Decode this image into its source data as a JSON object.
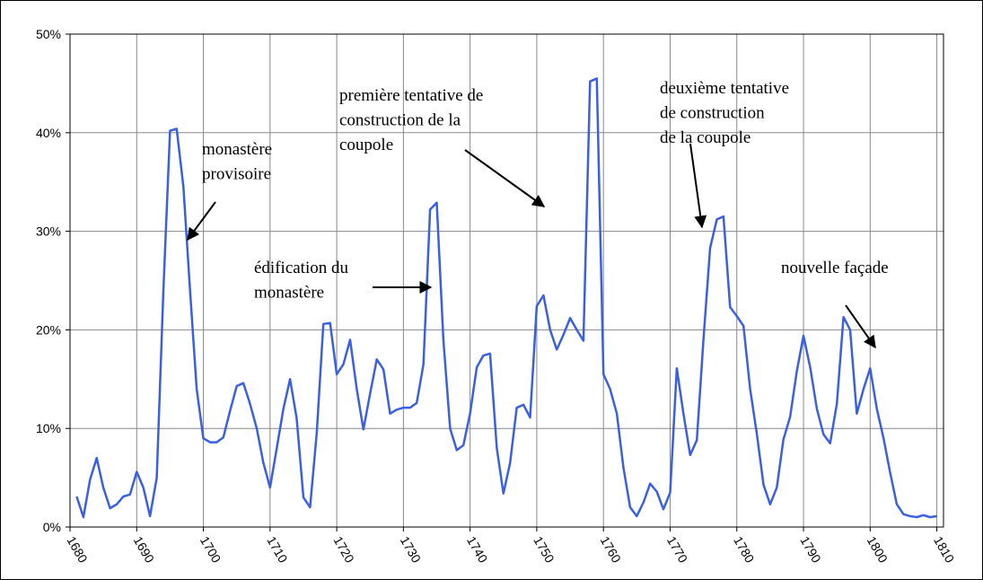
{
  "chart_data": {
    "type": "line",
    "x": [
      1681,
      1682,
      1683,
      1684,
      1685,
      1686,
      1687,
      1688,
      1689,
      1690,
      1691,
      1692,
      1693,
      1694,
      1695,
      1696,
      1697,
      1698,
      1699,
      1700,
      1701,
      1702,
      1703,
      1704,
      1705,
      1706,
      1707,
      1708,
      1709,
      1710,
      1711,
      1712,
      1713,
      1714,
      1715,
      1716,
      1717,
      1718,
      1719,
      1720,
      1721,
      1722,
      1723,
      1724,
      1725,
      1726,
      1727,
      1728,
      1729,
      1730,
      1731,
      1732,
      1733,
      1734,
      1735,
      1736,
      1737,
      1738,
      1739,
      1740,
      1741,
      1742,
      1743,
      1744,
      1745,
      1746,
      1747,
      1748,
      1749,
      1750,
      1751,
      1752,
      1753,
      1754,
      1755,
      1756,
      1757,
      1758,
      1759,
      1760,
      1761,
      1762,
      1763,
      1764,
      1765,
      1766,
      1767,
      1768,
      1769,
      1770,
      1771,
      1772,
      1773,
      1774,
      1775,
      1776,
      1777,
      1778,
      1779,
      1780,
      1781,
      1782,
      1783,
      1784,
      1785,
      1786,
      1787,
      1788,
      1789,
      1790,
      1791,
      1792,
      1793,
      1794,
      1795,
      1796,
      1797,
      1798,
      1799,
      1800,
      1801,
      1802,
      1803,
      1804,
      1805,
      1806,
      1807,
      1808,
      1809,
      1810
    ],
    "series": [
      {
        "color": "#3b5fe3",
        "values": [
          3.1,
          1,
          4.8,
          7,
          4,
          1.9,
          2.3,
          3.1,
          3.3,
          5.6,
          4,
          1.1,
          5,
          24,
          40.2,
          40.4,
          34.5,
          24,
          14,
          9,
          8.6,
          8.6,
          9.1,
          11.8,
          14.3,
          14.6,
          12.5,
          10,
          6.5,
          4,
          8,
          12,
          15,
          11,
          3,
          2,
          9.5,
          20.6,
          20.7,
          15.5,
          16.5,
          19,
          14,
          9.9,
          13.5,
          17,
          16,
          11.5,
          11.9,
          12.1,
          12.1,
          12.6,
          16.5,
          32.2,
          32.9,
          19,
          10,
          7.8,
          8.3,
          11.5,
          16.2,
          17.4,
          17.6,
          8,
          3.4,
          6.5,
          12.1,
          12.4,
          11.1,
          22.4,
          23.5,
          20,
          18,
          19.5,
          21.2,
          20,
          18.9,
          45.2,
          45.5,
          15.5,
          14,
          11.5,
          6,
          2,
          1.1,
          2.5,
          4.4,
          3.6,
          1.8,
          3.5,
          16.1,
          11.5,
          7.3,
          8.8,
          19,
          28.3,
          31.2,
          31.5,
          22.3,
          21.4,
          20.4,
          14,
          9.5,
          4.3,
          2.3,
          4,
          8.9,
          11.2,
          15.8,
          19.4,
          16.2,
          12,
          9.4,
          8.5,
          12.5,
          21.3,
          20,
          11.5,
          14,
          16.1,
          12,
          9,
          5.5,
          2.3,
          1.3,
          1.1,
          1,
          1.2,
          1,
          1.1
        ]
      }
    ],
    "xlim": [
      1680,
      1811
    ],
    "xticks": [
      1680,
      1690,
      1700,
      1710,
      1720,
      1730,
      1740,
      1750,
      1760,
      1770,
      1780,
      1790,
      1800,
      1810
    ],
    "ylim": [
      0,
      50
    ],
    "yticks": [
      {
        "value": 0,
        "label": "0%"
      },
      {
        "value": 10,
        "label": "10%"
      },
      {
        "value": 20,
        "label": "20%"
      },
      {
        "value": 30,
        "label": "30%"
      },
      {
        "value": 40,
        "label": "40%"
      },
      {
        "value": 50,
        "label": "50%"
      }
    ],
    "grid": true,
    "annotations": [
      {
        "lines": [
          "monastère",
          "provisoire"
        ]
      },
      {
        "lines": [
          "édification du",
          "monastère"
        ]
      },
      {
        "lines": [
          "première tentative de",
          "construction de la",
          "coupole"
        ]
      },
      {
        "lines": [
          "deuxième tentative",
          "de construction",
          "de la coupole"
        ]
      },
      {
        "lines": [
          "nouvelle façade"
        ]
      }
    ]
  }
}
